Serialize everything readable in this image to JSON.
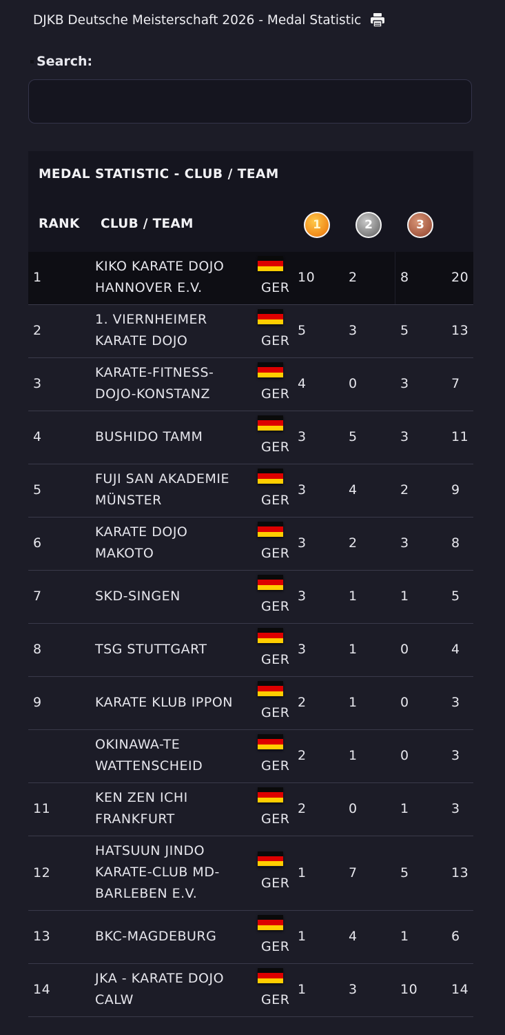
{
  "page": {
    "title": "DJKB Deutsche Meisterschaft 2026 - Medal Statistic",
    "print_icon": "print-icon"
  },
  "search": {
    "label": "Search:",
    "value": "",
    "placeholder": ""
  },
  "table": {
    "title": "MEDAL STATISTIC - CLUB / TEAM",
    "headers": {
      "rank": "RANK",
      "club": "CLUB / TEAM",
      "gold": "1",
      "silver": "2",
      "bronze": "3"
    },
    "colors": {
      "gold": "#f08a1a",
      "silver": "#7e7e7e",
      "bronze": "#a55a42"
    },
    "rows": [
      {
        "rank": "1",
        "club": [
          "KIKO KARATE DOJO",
          "HANNOVER E.V."
        ],
        "country": "GER",
        "gold": "10",
        "silver": "2",
        "bronze": "8",
        "total": "20"
      },
      {
        "rank": "2",
        "club": [
          "1. VIERNHEIMER",
          "KARATE DOJO"
        ],
        "country": "GER",
        "gold": "5",
        "silver": "3",
        "bronze": "5",
        "total": "13"
      },
      {
        "rank": "3",
        "club": [
          "KARATE-FITNESS-",
          "DOJO-KONSTANZ"
        ],
        "country": "GER",
        "gold": "4",
        "silver": "0",
        "bronze": "3",
        "total": "7"
      },
      {
        "rank": "4",
        "club": [
          "BUSHIDO TAMM"
        ],
        "country": "GER",
        "gold": "3",
        "silver": "5",
        "bronze": "3",
        "total": "11"
      },
      {
        "rank": "5",
        "club": [
          "FUJI SAN AKADEMIE",
          "MÜNSTER"
        ],
        "country": "GER",
        "gold": "3",
        "silver": "4",
        "bronze": "2",
        "total": "9"
      },
      {
        "rank": "6",
        "club": [
          "KARATE DOJO",
          "MAKOTO"
        ],
        "country": "GER",
        "gold": "3",
        "silver": "2",
        "bronze": "3",
        "total": "8"
      },
      {
        "rank": "7",
        "club": [
          "SKD-SINGEN"
        ],
        "country": "GER",
        "gold": "3",
        "silver": "1",
        "bronze": "1",
        "total": "5"
      },
      {
        "rank": "8",
        "club": [
          "TSG STUTTGART"
        ],
        "country": "GER",
        "gold": "3",
        "silver": "1",
        "bronze": "0",
        "total": "4"
      },
      {
        "rank": "9",
        "club": [
          "KARATE KLUB IPPON"
        ],
        "country": "GER",
        "gold": "2",
        "silver": "1",
        "bronze": "0",
        "total": "3"
      },
      {
        "rank": "",
        "club": [
          "OKINAWA-TE",
          "WATTENSCHEID"
        ],
        "country": "GER",
        "gold": "2",
        "silver": "1",
        "bronze": "0",
        "total": "3"
      },
      {
        "rank": "11",
        "club": [
          "KEN ZEN ICHI",
          "FRANKFURT"
        ],
        "country": "GER",
        "gold": "2",
        "silver": "0",
        "bronze": "1",
        "total": "3"
      },
      {
        "rank": "12",
        "club": [
          "HATSUUN JINDO",
          "KARATE-CLUB MD-",
          "BARLEBEN E.V."
        ],
        "country": "GER",
        "gold": "1",
        "silver": "7",
        "bronze": "5",
        "total": "13"
      },
      {
        "rank": "13",
        "club": [
          "BKC-MAGDEBURG"
        ],
        "country": "GER",
        "gold": "1",
        "silver": "4",
        "bronze": "1",
        "total": "6"
      },
      {
        "rank": "14",
        "club": [
          "JKA - KARATE DOJO",
          "CALW"
        ],
        "country": "GER",
        "gold": "1",
        "silver": "3",
        "bronze": "10",
        "total": "14"
      }
    ]
  }
}
